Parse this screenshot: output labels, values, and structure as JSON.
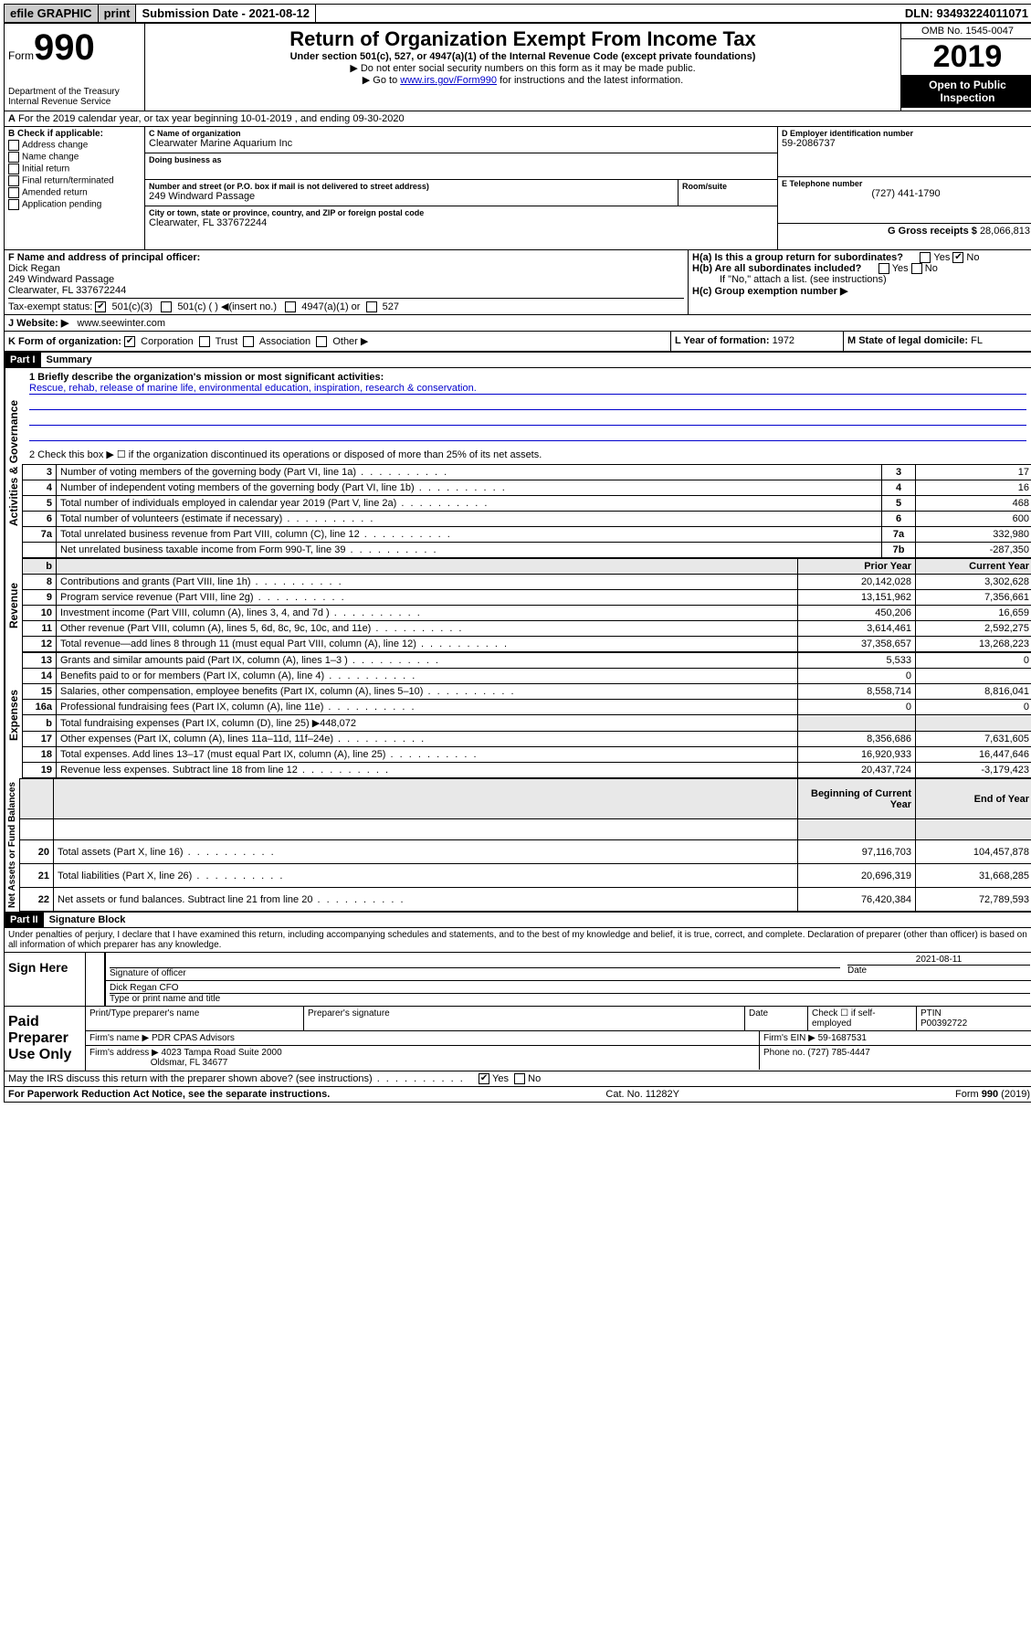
{
  "topbar": {
    "efile": "efile GRAPHIC",
    "print": "print",
    "submission_label": "Submission Date - 2021-08-12",
    "dln": "DLN: 93493224011071"
  },
  "header": {
    "form_word": "Form",
    "form_num": "990",
    "title": "Return of Organization Exempt From Income Tax",
    "subtitle": "Under section 501(c), 527, or 4947(a)(1) of the Internal Revenue Code (except private foundations)",
    "note1": "Do not enter social security numbers on this form as it may be made public.",
    "note2_pre": "Go to ",
    "note2_link": "www.irs.gov/Form990",
    "note2_post": " for instructions and the latest information.",
    "dept": "Department of the Treasury\nInternal Revenue Service",
    "omb": "OMB No. 1545-0047",
    "year": "2019",
    "open": "Open to Public Inspection"
  },
  "rowA": "For the 2019 calendar year, or tax year beginning 10-01-2019    , and ending 09-30-2020",
  "sectionB": {
    "label": "B Check if applicable:",
    "items": [
      "Address change",
      "Name change",
      "Initial return",
      "Final return/terminated",
      "Amended return",
      "Application pending"
    ]
  },
  "sectionC": {
    "name_label": "C Name of organization",
    "name": "Clearwater Marine Aquarium Inc",
    "dba_label": "Doing business as",
    "dba": "",
    "addr_label": "Number and street (or P.O. box if mail is not delivered to street address)",
    "room_label": "Room/suite",
    "addr": "249 Windward Passage",
    "city_label": "City or town, state or province, country, and ZIP or foreign postal code",
    "city": "Clearwater, FL  337672244"
  },
  "sectionD": {
    "label": "D Employer identification number",
    "value": "59-2086737"
  },
  "sectionE": {
    "label": "E Telephone number",
    "value": "(727) 441-1790"
  },
  "sectionG": {
    "label": "G Gross receipts $",
    "value": "28,066,813"
  },
  "sectionF": {
    "label": "F  Name and address of principal officer:",
    "name": "Dick Regan",
    "addr1": "249 Windward Passage",
    "addr2": "Clearwater, FL  337672244"
  },
  "sectionH": {
    "a": "H(a)  Is this a group return for subordinates?",
    "b": "H(b)  Are all subordinates included?",
    "b_note": "If \"No,\" attach a list. (see instructions)",
    "c": "H(c)  Group exemption number ▶",
    "yes": "Yes",
    "no": "No"
  },
  "taxExempt": {
    "label": "Tax-exempt status:",
    "opt1": "501(c)(3)",
    "opt2": "501(c) (   ) ◀(insert no.)",
    "opt3": "4947(a)(1) or",
    "opt4": "527"
  },
  "sectionJ": {
    "label": "J    Website: ▶",
    "value": "www.seewinter.com"
  },
  "sectionK": {
    "label": "K Form of organization:",
    "opts": [
      "Corporation",
      "Trust",
      "Association",
      "Other ▶"
    ]
  },
  "sectionL": {
    "label": "L Year of formation:",
    "value": "1972"
  },
  "sectionM": {
    "label": "M State of legal domicile:",
    "value": "FL"
  },
  "partI": {
    "header": "Part I",
    "title": "Summary",
    "q1_label": "1  Briefly describe the organization's mission or most significant activities:",
    "q1_text": "Rescue, rehab, release of marine life, environmental education, inspiration, research & conservation.",
    "q2": "2   Check this box ▶ ☐  if the organization discontinued its operations or disposed of more than 25% of its net assets."
  },
  "activities_rows": [
    {
      "n": "3",
      "desc": "Number of voting members of the governing body (Part VI, line 1a)",
      "box": "3",
      "val": "17"
    },
    {
      "n": "4",
      "desc": "Number of independent voting members of the governing body (Part VI, line 1b)",
      "box": "4",
      "val": "16"
    },
    {
      "n": "5",
      "desc": "Total number of individuals employed in calendar year 2019 (Part V, line 2a)",
      "box": "5",
      "val": "468"
    },
    {
      "n": "6",
      "desc": "Total number of volunteers (estimate if necessary)",
      "box": "6",
      "val": "600"
    },
    {
      "n": "7a",
      "desc": "Total unrelated business revenue from Part VIII, column (C), line 12",
      "box": "7a",
      "val": "332,980"
    },
    {
      "n": "",
      "desc": "Net unrelated business taxable income from Form 990-T, line 39",
      "box": "7b",
      "val": "-287,350"
    }
  ],
  "revenue_header": {
    "b": "b",
    "prior": "Prior Year",
    "current": "Current Year"
  },
  "revenue_rows": [
    {
      "n": "8",
      "desc": "Contributions and grants (Part VIII, line 1h)",
      "prior": "20,142,028",
      "cur": "3,302,628"
    },
    {
      "n": "9",
      "desc": "Program service revenue (Part VIII, line 2g)",
      "prior": "13,151,962",
      "cur": "7,356,661"
    },
    {
      "n": "10",
      "desc": "Investment income (Part VIII, column (A), lines 3, 4, and 7d )",
      "prior": "450,206",
      "cur": "16,659"
    },
    {
      "n": "11",
      "desc": "Other revenue (Part VIII, column (A), lines 5, 6d, 8c, 9c, 10c, and 11e)",
      "prior": "3,614,461",
      "cur": "2,592,275"
    },
    {
      "n": "12",
      "desc": "Total revenue—add lines 8 through 11 (must equal Part VIII, column (A), line 12)",
      "prior": "37,358,657",
      "cur": "13,268,223"
    }
  ],
  "expense_rows": [
    {
      "n": "13",
      "desc": "Grants and similar amounts paid (Part IX, column (A), lines 1–3 )",
      "prior": "5,533",
      "cur": "0"
    },
    {
      "n": "14",
      "desc": "Benefits paid to or for members (Part IX, column (A), line 4)",
      "prior": "0",
      "cur": ""
    },
    {
      "n": "15",
      "desc": "Salaries, other compensation, employee benefits (Part IX, column (A), lines 5–10)",
      "prior": "8,558,714",
      "cur": "8,816,041"
    },
    {
      "n": "16a",
      "desc": "Professional fundraising fees (Part IX, column (A), line 11e)",
      "prior": "0",
      "cur": "0"
    }
  ],
  "line16b": {
    "n": "b",
    "desc": "Total fundraising expenses (Part IX, column (D), line 25) ▶448,072"
  },
  "expense_rows2": [
    {
      "n": "17",
      "desc": "Other expenses (Part IX, column (A), lines 11a–11d, 11f–24e)",
      "prior": "8,356,686",
      "cur": "7,631,605"
    },
    {
      "n": "18",
      "desc": "Total expenses. Add lines 13–17 (must equal Part IX, column (A), line 25)",
      "prior": "16,920,933",
      "cur": "16,447,646"
    },
    {
      "n": "19",
      "desc": "Revenue less expenses. Subtract line 18 from line 12",
      "prior": "20,437,724",
      "cur": "-3,179,423"
    }
  ],
  "netassets_header": {
    "begin": "Beginning of Current Year",
    "end": "End of Year"
  },
  "netassets_rows": [
    {
      "n": "20",
      "desc": "Total assets (Part X, line 16)",
      "prior": "97,116,703",
      "cur": "104,457,878"
    },
    {
      "n": "21",
      "desc": "Total liabilities (Part X, line 26)",
      "prior": "20,696,319",
      "cur": "31,668,285"
    },
    {
      "n": "22",
      "desc": "Net assets or fund balances. Subtract line 21 from line 20",
      "prior": "76,420,384",
      "cur": "72,789,593"
    }
  ],
  "partII": {
    "header": "Part II",
    "title": "Signature Block",
    "perjury": "Under penalties of perjury, I declare that I have examined this return, including accompanying schedules and statements, and to the best of my knowledge and belief, it is true, correct, and complete. Declaration of preparer (other than officer) is based on all information of which preparer has any knowledge."
  },
  "sign": {
    "here": "Sign Here",
    "sig_officer": "Signature of officer",
    "date": "2021-08-11",
    "date_label": "Date",
    "officer_name": "Dick Regan CFO",
    "type_label": "Type or print name and title"
  },
  "paid": {
    "label": "Paid Preparer Use Only",
    "print_label": "Print/Type preparer's name",
    "sig_label": "Preparer's signature",
    "date_label": "Date",
    "check_label": "Check ☐ if self-employed",
    "ptin_label": "PTIN",
    "ptin": "P00392722",
    "firm_name_label": "Firm's name    ▶",
    "firm_name": "PDR CPAS Advisors",
    "firm_ein_label": "Firm's EIN ▶",
    "firm_ein": "59-1687531",
    "firm_addr_label": "Firm's address ▶",
    "firm_addr1": "4023 Tampa Road Suite 2000",
    "firm_addr2": "Oldsmar, FL  34677",
    "phone_label": "Phone no.",
    "phone": "(727) 785-4447"
  },
  "discuss": {
    "q": "May the IRS discuss this return with the preparer shown above? (see instructions)",
    "yes": "Yes",
    "no": "No"
  },
  "footer": {
    "left": "For Paperwork Reduction Act Notice, see the separate instructions.",
    "mid": "Cat. No. 11282Y",
    "right": "Form 990 (2019)"
  },
  "vert": {
    "activities": "Activities & Governance",
    "revenue": "Revenue",
    "expenses": "Expenses",
    "netassets": "Net Assets or Fund Balances"
  }
}
